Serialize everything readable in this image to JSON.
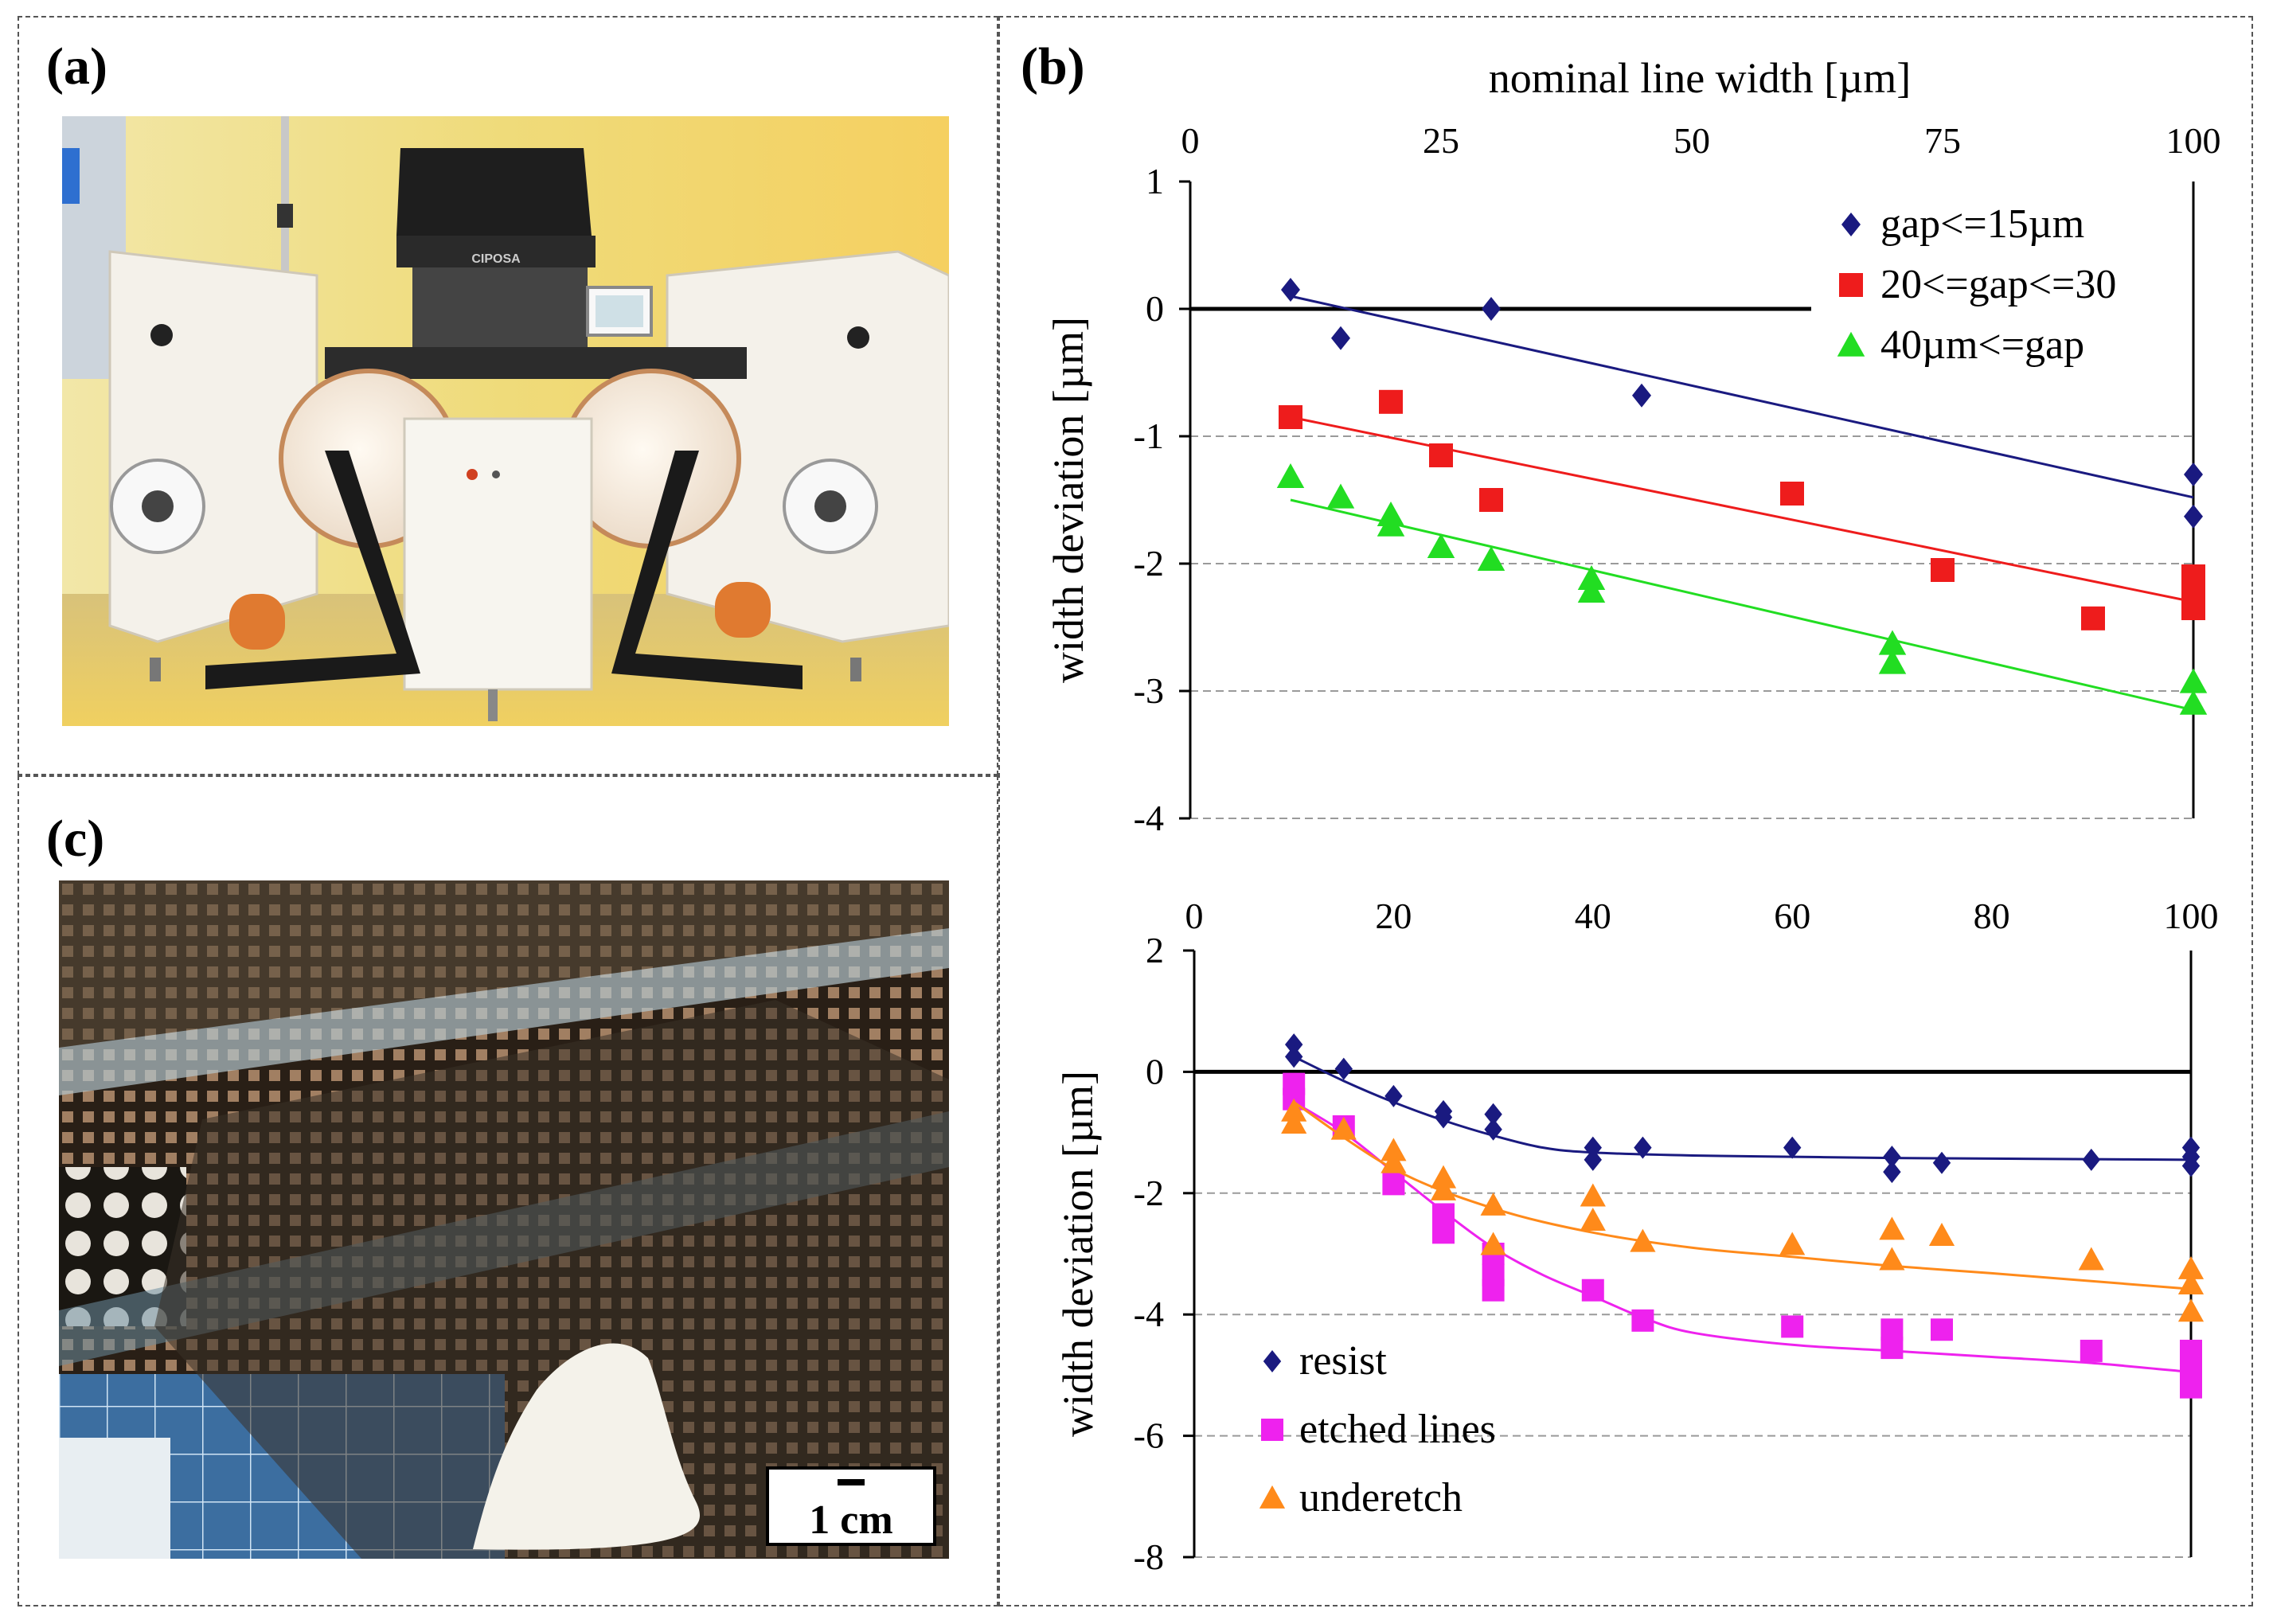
{
  "panels": {
    "a": {
      "label": "(a)"
    },
    "b": {
      "label": "(b)"
    },
    "c": {
      "label": "(c)"
    }
  },
  "photo_a": {
    "machine_label": "CIPOSA"
  },
  "photo_c": {
    "scale_bar": "1 cm"
  },
  "colors": {
    "navy": "#1a1a80",
    "red": "#ee1c1c",
    "green": "#22dd22",
    "magenta": "#ee22ee",
    "orange": "#ff8a1a"
  },
  "chart_data": [
    {
      "type": "scatter",
      "title": "",
      "xlabel": "nominal line width [µm]",
      "ylabel": "width deviation [µm]",
      "xlim": [
        0,
        100
      ],
      "ylim": [
        -4,
        1
      ],
      "xticks": [
        0,
        25,
        50,
        75,
        100
      ],
      "yticks": [
        1,
        0,
        -1,
        -2,
        -3,
        -4
      ],
      "x_axis_position": "top",
      "legend_position": "top-right",
      "grid": "horizontal dashed",
      "zero_line": true,
      "series": [
        {
          "name": "gap<=15µm",
          "color": "#1a1a80",
          "marker": "diamond",
          "x": [
            10,
            15,
            30,
            45,
            100,
            100
          ],
          "y": [
            0.15,
            -0.23,
            0.0,
            -0.68,
            -1.3,
            -1.63
          ],
          "fit": {
            "type": "linear",
            "x": [
              10,
              100
            ],
            "y": [
              0.1,
              -1.48
            ]
          }
        },
        {
          "name": "20<=gap<=30",
          "color": "#ee1c1c",
          "marker": "square",
          "x": [
            10,
            20,
            25,
            30,
            60,
            75,
            90,
            100,
            100,
            100
          ],
          "y": [
            -0.85,
            -0.73,
            -1.15,
            -1.5,
            -1.45,
            -2.05,
            -2.43,
            -2.1,
            -2.25,
            -2.35
          ],
          "fit": {
            "type": "linear",
            "x": [
              10,
              100
            ],
            "y": [
              -0.85,
              -2.3
            ]
          }
        },
        {
          "name": "40µm<=gap",
          "color": "#22dd22",
          "marker": "triangle",
          "x": [
            10,
            15,
            20,
            20,
            25,
            30,
            40,
            40,
            70,
            70,
            100,
            100
          ],
          "y": [
            -1.32,
            -1.48,
            -1.62,
            -1.7,
            -1.87,
            -1.97,
            -2.12,
            -2.22,
            -2.63,
            -2.78,
            -2.93,
            -3.1
          ],
          "fit": {
            "type": "linear",
            "x": [
              10,
              100
            ],
            "y": [
              -1.5,
              -3.15
            ]
          }
        }
      ]
    },
    {
      "type": "scatter",
      "title": "",
      "xlabel": "",
      "ylabel": "width deviation [µm]",
      "xlim": [
        0,
        100
      ],
      "ylim": [
        -8,
        2
      ],
      "xticks": [
        0,
        20,
        40,
        60,
        80,
        100
      ],
      "yticks": [
        2,
        0,
        -2,
        -4,
        -6,
        -8
      ],
      "x_axis_position": "top",
      "legend_position": "bottom-left",
      "grid": "horizontal dashed",
      "zero_line": true,
      "series": [
        {
          "name": "resist",
          "color": "#1a1a80",
          "marker": "diamond",
          "x": [
            10,
            10,
            15,
            20,
            25,
            25,
            30,
            30,
            40,
            40,
            45,
            60,
            70,
            70,
            75,
            90,
            100,
            100,
            100
          ],
          "y": [
            0.45,
            0.25,
            0.05,
            -0.4,
            -0.65,
            -0.75,
            -0.7,
            -0.95,
            -1.25,
            -1.45,
            -1.25,
            -1.25,
            -1.4,
            -1.65,
            -1.5,
            -1.45,
            -1.25,
            -1.4,
            -1.55
          ],
          "fit": {
            "type": "curve",
            "x": [
              10,
              15,
              20,
              25,
              30,
              35,
              40,
              50,
              60,
              70,
              80,
              90,
              100
            ],
            "y": [
              0.25,
              -0.15,
              -0.5,
              -0.8,
              -1.05,
              -1.25,
              -1.33,
              -1.38,
              -1.4,
              -1.42,
              -1.43,
              -1.44,
              -1.45
            ]
          }
        },
        {
          "name": "etched lines",
          "color": "#ee22ee",
          "marker": "square",
          "x": [
            10,
            10,
            15,
            20,
            25,
            25,
            30,
            30,
            30,
            40,
            45,
            60,
            70,
            70,
            75,
            90,
            100,
            100,
            100
          ],
          "y": [
            -0.2,
            -0.45,
            -0.9,
            -1.85,
            -2.35,
            -2.65,
            -3.0,
            -3.35,
            -3.6,
            -3.6,
            -4.1,
            -4.2,
            -4.25,
            -4.55,
            -4.25,
            -4.6,
            -4.6,
            -4.9,
            -5.2
          ],
          "fit": {
            "type": "curve",
            "x": [
              10,
              15,
              20,
              25,
              30,
              35,
              40,
              45,
              50,
              60,
              70,
              80,
              90,
              100
            ],
            "y": [
              -0.5,
              -1.0,
              -1.65,
              -2.3,
              -2.9,
              -3.35,
              -3.7,
              -4.05,
              -4.3,
              -4.5,
              -4.6,
              -4.7,
              -4.8,
              -4.95
            ]
          }
        },
        {
          "name": "underetch",
          "color": "#ff8a1a",
          "marker": "triangle",
          "x": [
            10,
            10,
            15,
            20,
            20,
            25,
            25,
            30,
            30,
            40,
            40,
            45,
            60,
            70,
            70,
            75,
            90,
            100,
            100,
            100
          ],
          "y": [
            -0.65,
            -0.85,
            -0.95,
            -1.3,
            -1.5,
            -1.75,
            -1.95,
            -2.2,
            -2.85,
            -2.05,
            -2.45,
            -2.8,
            -2.85,
            -2.6,
            -3.1,
            -2.7,
            -3.1,
            -3.25,
            -3.5,
            -3.95
          ],
          "fit": {
            "type": "curve",
            "x": [
              10,
              20,
              30,
              40,
              50,
              60,
              70,
              80,
              90,
              100
            ],
            "y": [
              -0.5,
              -1.6,
              -2.25,
              -2.65,
              -2.9,
              -3.05,
              -3.2,
              -3.32,
              -3.45,
              -3.58
            ]
          }
        }
      ]
    }
  ]
}
